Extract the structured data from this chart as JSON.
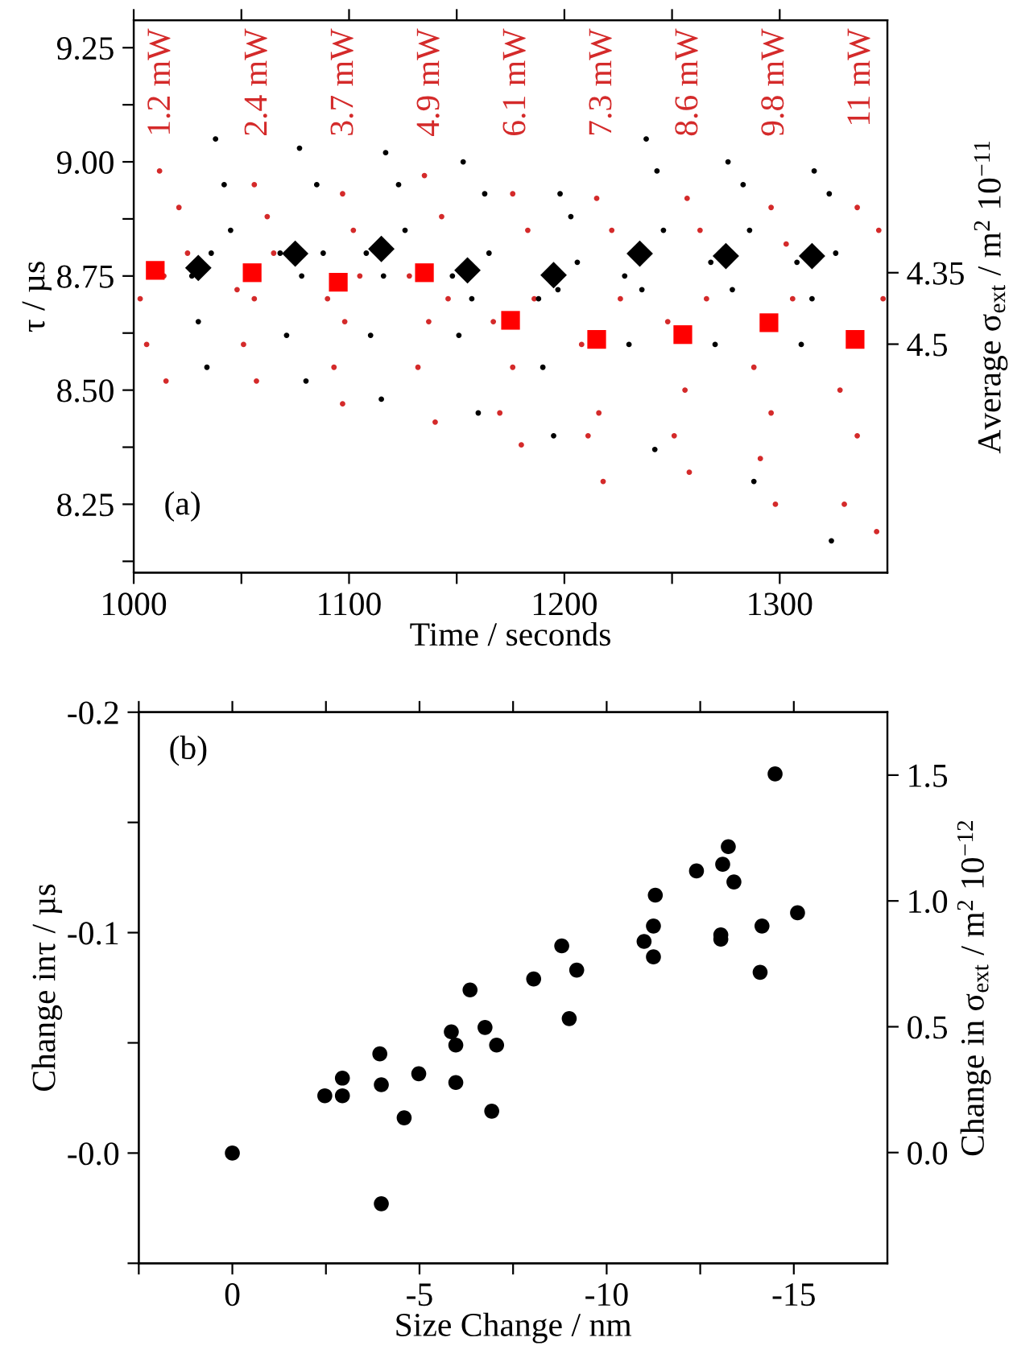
{
  "chart_data": [
    {
      "type": "scatter",
      "xlabel": "Time / seconds",
      "ylabel": "τ / µs",
      "y2label": "Average σ$_{ext}$ / m$^{2}$ 10$^{−11}$",
      "xlim": [
        1000,
        1350
      ],
      "xticks": [
        1000,
        {
          "value": 1050,
          "label": null
        },
        1100,
        {
          "value": 1150,
          "label": null
        },
        1200,
        {
          "value": 1250,
          "label": null
        },
        1300
      ],
      "ylim": [
        8.1,
        9.31
      ],
      "yticks": [
        {
          "value": 8.125,
          "label": null
        },
        {
          "value": 8.25,
          "label": "8.25"
        },
        {
          "value": 8.375,
          "label": null
        },
        {
          "value": 8.5,
          "label": "8.50"
        },
        {
          "value": 8.625,
          "label": null
        },
        {
          "value": 8.75,
          "label": "8.75"
        },
        {
          "value": 8.875,
          "label": null
        },
        {
          "value": 9.0,
          "label": "9.00"
        },
        {
          "value": 9.125,
          "label": null
        },
        {
          "value": 9.25,
          "label": "9.25"
        }
      ],
      "y2lim": [
        4.98,
        3.82
      ],
      "y2ticks": [
        4.35,
        4.5
      ],
      "grid": false,
      "legend": false,
      "annotations": [
        "(a)",
        "1.2 mW",
        "2.4 mW",
        "3.7 mW",
        "4.9 mW",
        "6.1 mW",
        "7.3 mW",
        "8.6 mW",
        "9.8 mW",
        "11 mW"
      ],
      "series": [
        {
          "color": "#d42a2a",
          "marker": "circle",
          "x": [
            1003,
            1012,
            1025,
            1015,
            1014,
            1006,
            1021,
            1048,
            1056,
            1065,
            1057,
            1056,
            1051,
            1062,
            1090,
            1097,
            1105,
            1097,
            1098,
            1093,
            1102,
            1128,
            1135,
            1146,
            1140,
            1137,
            1132,
            1143,
            1167,
            1176,
            1186,
            1180,
            1176,
            1170,
            1183,
            1208,
            1215,
            1226,
            1218,
            1216,
            1211,
            1222,
            1248,
            1257,
            1266,
            1258,
            1256,
            1251,
            1263,
            1288,
            1296,
            1306,
            1298,
            1296,
            1291,
            1303,
            1328,
            1336,
            1348,
            1345,
            1336,
            1330,
            1346
          ],
          "values": [
            8.7,
            8.98,
            8.8,
            8.52,
            8.75,
            8.6,
            8.9,
            8.72,
            8.95,
            8.8,
            8.52,
            8.7,
            8.6,
            8.88,
            8.7,
            8.93,
            8.75,
            8.47,
            8.65,
            8.55,
            8.85,
            8.75,
            8.97,
            8.7,
            8.43,
            8.65,
            8.55,
            8.88,
            8.65,
            8.93,
            8.7,
            8.38,
            8.55,
            8.45,
            8.85,
            8.6,
            8.92,
            8.7,
            8.3,
            8.45,
            8.4,
            8.85,
            8.65,
            8.92,
            8.7,
            8.32,
            8.5,
            8.4,
            8.85,
            8.55,
            8.9,
            8.7,
            8.25,
            8.45,
            8.35,
            8.82,
            8.5,
            8.9,
            8.7,
            8.19,
            8.4,
            8.25,
            8.85
          ]
        },
        {
          "color": "#000000",
          "marker": "circle",
          "x": [
            1027,
            1038,
            1045,
            1034,
            1036,
            1030,
            1042,
            1068,
            1077,
            1088,
            1080,
            1078,
            1071,
            1085,
            1108,
            1117,
            1126,
            1115,
            1116,
            1110,
            1123,
            1148,
            1153,
            1165,
            1160,
            1157,
            1151,
            1163,
            1188,
            1198,
            1206,
            1195,
            1197,
            1190,
            1203,
            1228,
            1238,
            1246,
            1242,
            1236,
            1230,
            1243,
            1268,
            1276,
            1286,
            1288,
            1278,
            1270,
            1283,
            1308,
            1316,
            1326,
            1324,
            1315,
            1310,
            1323
          ],
          "values": [
            8.75,
            9.05,
            8.85,
            8.55,
            8.8,
            8.65,
            8.95,
            8.8,
            9.03,
            8.8,
            8.52,
            8.75,
            8.62,
            8.95,
            8.8,
            9.02,
            8.85,
            8.48,
            8.75,
            8.62,
            8.95,
            8.75,
            9.0,
            8.8,
            8.45,
            8.7,
            8.62,
            8.93,
            8.7,
            8.93,
            8.78,
            8.4,
            8.72,
            8.55,
            8.88,
            8.75,
            9.05,
            8.85,
            8.37,
            8.72,
            8.6,
            8.98,
            8.78,
            9.0,
            8.85,
            8.3,
            8.72,
            8.6,
            8.95,
            8.78,
            8.98,
            8.8,
            8.17,
            8.7,
            8.6,
            8.93
          ]
        },
        {
          "color": "#ff0000",
          "marker": "square",
          "axis": "y2",
          "x": [
            1010,
            1055,
            1095,
            1135,
            1175,
            1215,
            1255,
            1295,
            1335
          ],
          "values": [
            4.345,
            4.35,
            4.37,
            4.35,
            4.45,
            4.49,
            4.48,
            4.455,
            4.49
          ]
        },
        {
          "color": "#000000",
          "marker": "diamond",
          "axis": "y2",
          "x": [
            1030,
            1075,
            1115,
            1155,
            1195,
            1235,
            1275,
            1315
          ],
          "values": [
            4.34,
            4.31,
            4.3,
            4.345,
            4.355,
            4.31,
            4.315,
            4.315
          ]
        }
      ]
    },
    {
      "type": "scatter",
      "xlabel": "Size Change / nm",
      "ylabel": "Change inτ / µs",
      "y2label": "Change in σ$_{ext}$ / m$^{2}$ 10$^{−12}$",
      "xlim": [
        2.5,
        -17.5
      ],
      "xticks": [
        {
          "value": 2.5,
          "label": null
        },
        0,
        {
          "value": -2.5,
          "label": null
        },
        -5,
        {
          "value": -7.5,
          "label": null
        },
        -10,
        {
          "value": -12.5,
          "label": null
        },
        -15
      ],
      "ylim": [
        0.05,
        -0.2
      ],
      "yticks": [
        {
          "value": 0.05,
          "label": null
        },
        {
          "value": 0,
          "label": "-0.0"
        },
        {
          "value": -0.05,
          "label": null
        },
        -0.1,
        {
          "value": -0.15,
          "label": null
        },
        -0.2
      ],
      "y2lim": [
        -0.44,
        1.75
      ],
      "y2ticks": [
        {
          "value": 0,
          "label": "0.0"
        },
        0.5,
        {
          "value": 1,
          "label": "1.0"
        },
        1.5
      ],
      "grid": false,
      "legend": false,
      "annotations": [
        "(b)"
      ],
      "series": [
        {
          "color": "#000000",
          "marker": "circle",
          "x": [
            -14.5,
            -13.25,
            -13.1,
            -13.4,
            -12.4,
            -11.3,
            -15.1,
            -11.25,
            -14.15,
            -11.0,
            -13.05,
            -13.05,
            -11.25,
            -8.8,
            -9.2,
            -14.1,
            -8.05,
            -6.35,
            -9.0,
            -5.85,
            -6.75,
            -5.97,
            -7.06,
            -3.94,
            -2.94,
            -4.98,
            -3.98,
            -5.97,
            -2.47,
            -2.94,
            -4.59,
            -6.93,
            0,
            -3.98
          ],
          "values": [
            -0.172,
            -0.139,
            -0.131,
            -0.123,
            -0.128,
            -0.117,
            -0.109,
            -0.103,
            -0.103,
            -0.096,
            -0.099,
            -0.097,
            -0.089,
            -0.094,
            -0.083,
            -0.082,
            -0.079,
            -0.074,
            -0.061,
            -0.055,
            -0.057,
            -0.049,
            -0.049,
            -0.045,
            -0.034,
            -0.036,
            -0.031,
            -0.032,
            -0.026,
            -0.026,
            -0.016,
            -0.019,
            0,
            0.023
          ]
        }
      ]
    }
  ]
}
